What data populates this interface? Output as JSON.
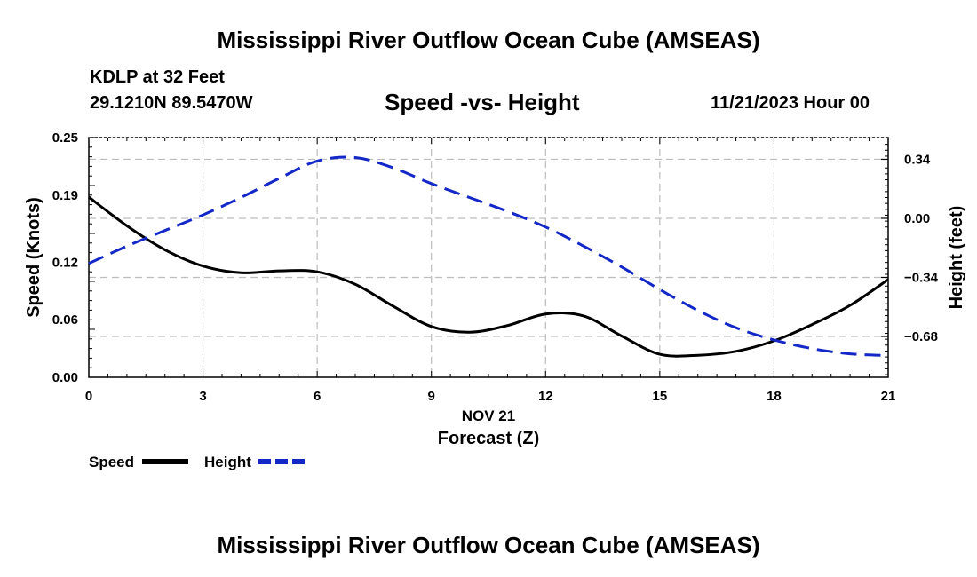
{
  "header": {
    "title": "Mississippi River Outflow Ocean Cube (AMSEAS)",
    "station": "KDLP at 32 Feet",
    "coords": "29.1210N  89.5470W",
    "subtitle": "Speed -vs- Height",
    "datetime": "11/21/2023 Hour 00"
  },
  "footer": {
    "title": "Mississippi River Outflow Ocean Cube (AMSEAS)"
  },
  "chart_data": {
    "type": "line",
    "title": "Speed -vs- Height",
    "xlabel": "Forecast (Z)",
    "xlabel_date": "NOV 21",
    "ylabel": "Speed (Knots)",
    "y2label": "Height (feet)",
    "xlim": [
      0,
      21
    ],
    "ylim": [
      0,
      0.25
    ],
    "y2lim": [
      -0.915,
      0.465
    ],
    "xticks": [
      0,
      3,
      6,
      9,
      12,
      15,
      18,
      21
    ],
    "yticks": [
      0.0,
      0.06,
      0.12,
      0.19,
      0.25
    ],
    "ytick_labels": [
      "0.00",
      "0.06",
      "0.12",
      "0.19",
      "0.25"
    ],
    "y2ticks": [
      0.34,
      0.0,
      -0.34,
      -0.68
    ],
    "y2tick_labels": [
      "0.34",
      "0.00",
      "−0.34",
      "−0.68"
    ],
    "grid": true,
    "legend_position": "bottom-left",
    "x": [
      0,
      1,
      2,
      3,
      4,
      5,
      6,
      7,
      8,
      9,
      10,
      11,
      12,
      13,
      14,
      15,
      16,
      17,
      18,
      19,
      20,
      21
    ],
    "series": [
      {
        "name": "Speed",
        "axis": "left",
        "color": "#000000",
        "dash": "solid",
        "values": [
          0.188,
          0.158,
          0.133,
          0.116,
          0.109,
          0.111,
          0.11,
          0.097,
          0.074,
          0.053,
          0.047,
          0.054,
          0.066,
          0.064,
          0.043,
          0.024,
          0.023,
          0.027,
          0.038,
          0.055,
          0.075,
          0.102
        ]
      },
      {
        "name": "Height",
        "axis": "right",
        "color": "#1428c8",
        "dash": "dashed",
        "values": [
          -0.26,
          -0.16,
          -0.07,
          0.02,
          0.12,
          0.23,
          0.33,
          0.35,
          0.29,
          0.2,
          0.12,
          0.04,
          -0.05,
          -0.16,
          -0.28,
          -0.41,
          -0.53,
          -0.63,
          -0.7,
          -0.75,
          -0.78,
          -0.79
        ]
      }
    ]
  }
}
